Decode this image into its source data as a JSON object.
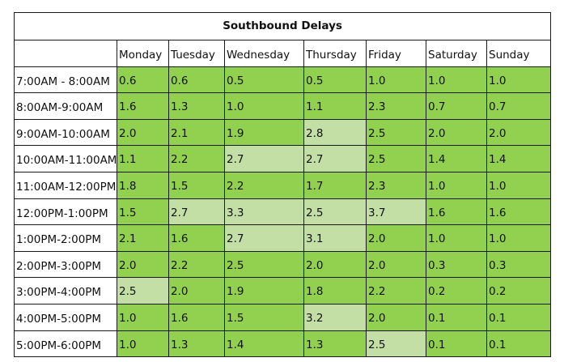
{
  "title": "Southbound Delays",
  "days": [
    "Monday",
    "Tuesday",
    "Wednesday",
    "Thursday",
    "Friday",
    "Saturday",
    "Sunday"
  ],
  "colors": {
    "normal": "#92d050",
    "highlight": "#c4dfa6"
  },
  "rows": [
    {
      "time": "7:00AM - 8:00AM",
      "values": [
        "0.6",
        "0.6",
        "0.5",
        "0.5",
        "1.0",
        "1.0",
        "1.0"
      ],
      "highlight": []
    },
    {
      "time": "8:00AM-9:00AM",
      "values": [
        "1.6",
        "1.3",
        "1.0",
        "1.1",
        "2.3",
        "0.7",
        "0.7"
      ],
      "highlight": []
    },
    {
      "time": "9:00AM-10:00AM",
      "values": [
        "2.0",
        "2.1",
        "1.9",
        "2.8",
        "2.5",
        "2.0",
        "2.0"
      ],
      "highlight": [
        3
      ]
    },
    {
      "time": "10:00AM-11:00AM",
      "values": [
        "1.1",
        "2.2",
        "2.7",
        "2.7",
        "2.5",
        "1.4",
        "1.4"
      ],
      "highlight": [
        2,
        3
      ]
    },
    {
      "time": "11:00AM-12:00PM",
      "values": [
        "1.8",
        "1.5",
        "2.2",
        "1.7",
        "2.3",
        "1.0",
        "1.0"
      ],
      "highlight": []
    },
    {
      "time": "12:00PM-1:00PM",
      "values": [
        "1.5",
        "2.7",
        "3.3",
        "2.5",
        "3.7",
        "1.6",
        "1.6"
      ],
      "highlight": [
        1,
        2,
        3,
        4
      ]
    },
    {
      "time": "1:00PM-2:00PM",
      "values": [
        "2.1",
        "1.6",
        "2.7",
        "3.1",
        "2.0",
        "1.0",
        "1.0"
      ],
      "highlight": [
        2,
        3
      ]
    },
    {
      "time": "2:00PM-3:00PM",
      "values": [
        "2.0",
        "2.2",
        "2.5",
        "2.0",
        "2.0",
        "0.3",
        "0.3"
      ],
      "highlight": []
    },
    {
      "time": "3:00PM-4:00PM",
      "values": [
        "2.5",
        "2.0",
        "1.9",
        "1.8",
        "2.2",
        "0.2",
        "0.2"
      ],
      "highlight": [
        0
      ]
    },
    {
      "time": "4:00PM-5:00PM",
      "values": [
        "1.0",
        "1.6",
        "1.5",
        "3.2",
        "2.0",
        "0.1",
        "0.1"
      ],
      "highlight": [
        3
      ]
    },
    {
      "time": "5:00PM-6:00PM",
      "values": [
        "1.0",
        "1.3",
        "1.4",
        "1.3",
        "2.5",
        "0.1",
        "0.1"
      ],
      "highlight": [
        4
      ]
    }
  ]
}
